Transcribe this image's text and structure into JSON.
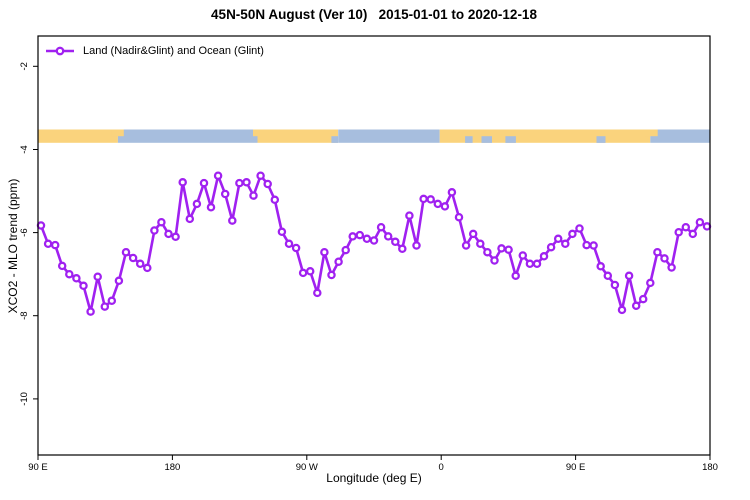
{
  "title": "45N-50N August (Ver 10)   2015-01-01 to 2020-12-18",
  "legend": {
    "label": "Land (Nadir&Glint) and Ocean (Glint)"
  },
  "chart_data": {
    "type": "line",
    "title": "45N-50N August (Ver 10)   2015-01-01 to 2020-12-18",
    "xlabel": "Longitude (deg E)",
    "ylabel": "XCO2 - MLO trend (ppm)",
    "xlim": [
      90,
      540
    ],
    "ylim": [
      -11.35,
      -1.27
    ],
    "grid": false,
    "legend_position": "top-left-inside",
    "x_ticks": [
      {
        "pos": 90,
        "label": "90 E"
      },
      {
        "pos": 180,
        "label": "180"
      },
      {
        "pos": 270,
        "label": "90 W"
      },
      {
        "pos": 360,
        "label": "0"
      },
      {
        "pos": 450,
        "label": "90 E"
      },
      {
        "pos": 540,
        "label": "180"
      }
    ],
    "y_ticks": [
      {
        "pos": -2,
        "label": "-2"
      },
      {
        "pos": -4,
        "label": "-4"
      },
      {
        "pos": -6,
        "label": "-6"
      },
      {
        "pos": -8,
        "label": "-8"
      },
      {
        "pos": -10,
        "label": "-10"
      }
    ],
    "series": [
      {
        "name": "Land (Nadir&Glint) and Ocean (Glint)",
        "color": "#A021F0",
        "marker": "open-circle",
        "x_start": 92,
        "x_end": 538,
        "values": [
          -5.83,
          -6.27,
          -6.3,
          -6.8,
          -7.0,
          -7.1,
          -7.28,
          -7.9,
          -7.06,
          -7.78,
          -7.64,
          -7.16,
          -6.47,
          -6.61,
          -6.75,
          -6.85,
          -5.95,
          -5.75,
          -6.03,
          -6.1,
          -4.79,
          -5.67,
          -5.31,
          -4.81,
          -5.39,
          -4.63,
          -5.07,
          -5.71,
          -4.81,
          -4.79,
          -5.11,
          -4.63,
          -4.83,
          -5.21,
          -5.98,
          -6.27,
          -6.37,
          -6.97,
          -6.93,
          -7.45,
          -6.47,
          -7.02,
          -6.7,
          -6.42,
          -6.09,
          -6.06,
          -6.15,
          -6.19,
          -5.87,
          -6.09,
          -6.22,
          -6.39,
          -5.59,
          -6.31,
          -5.19,
          -5.2,
          -5.31,
          -5.37,
          -5.03,
          -5.63,
          -6.31,
          -6.03,
          -6.27,
          -6.47,
          -6.67,
          -6.38,
          -6.41,
          -7.04,
          -6.55,
          -6.75,
          -6.75,
          -6.57,
          -6.35,
          -6.15,
          -6.27,
          -6.03,
          -5.9,
          -6.3,
          -6.31,
          -6.81,
          -7.04,
          -7.26,
          -7.86,
          -7.04,
          -7.76,
          -7.6,
          -7.21,
          -6.47,
          -6.62,
          -6.84,
          -5.99,
          -5.87,
          -6.03,
          -5.75,
          -5.85
        ]
      }
    ],
    "surface_band": {
      "description": "land/ocean strip",
      "value_top": -3.52,
      "value_bottom": -3.84,
      "land_color": "#FAD37D",
      "ocean_color": "#A7BEDE",
      "segments": [
        {
          "from": 90,
          "to": 143.5,
          "type": "land"
        },
        {
          "from": 143.5,
          "to": 237,
          "type": "ocean"
        },
        {
          "from": 237,
          "to": 291,
          "type": "land"
        },
        {
          "from": 291,
          "to": 359,
          "type": "ocean"
        },
        {
          "from": 359,
          "to": 500,
          "type": "land"
        },
        {
          "from": 500,
          "to": 540,
          "type": "ocean"
        }
      ],
      "flecks": [
        {
          "from": 234,
          "to": 238.5,
          "type": "land",
          "half": "top"
        },
        {
          "from": 139.5,
          "to": 147.5,
          "type": "land",
          "half": "top"
        },
        {
          "from": 496.5,
          "to": 505,
          "type": "land",
          "half": "top"
        },
        {
          "from": 286.5,
          "to": 291,
          "type": "ocean",
          "half": "bottom"
        },
        {
          "from": 376,
          "to": 381,
          "type": "ocean",
          "half": "bottom"
        },
        {
          "from": 387,
          "to": 394,
          "type": "ocean",
          "half": "bottom"
        },
        {
          "from": 403,
          "to": 410,
          "type": "ocean",
          "half": "bottom"
        },
        {
          "from": 464,
          "to": 470,
          "type": "ocean",
          "half": "bottom"
        }
      ]
    }
  }
}
